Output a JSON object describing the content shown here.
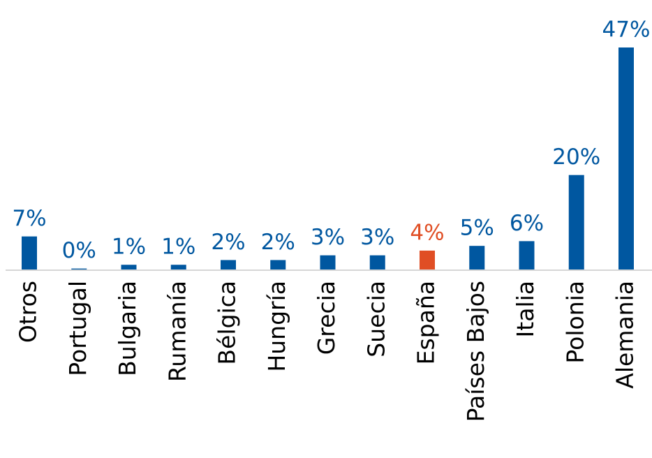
{
  "chart_data": {
    "type": "bar",
    "categories": [
      "Otros",
      "Portugal",
      "Bulgaria",
      "Rumanía",
      "Bélgica",
      "Hungría",
      "Grecia",
      "Suecia",
      "España",
      "Países Bajos",
      "Italia",
      "Polonia",
      "Alemania"
    ],
    "values": [
      7,
      0.2,
      1,
      1,
      2,
      2,
      3,
      3,
      4,
      5,
      6,
      20,
      47
    ],
    "value_labels": [
      "7%",
      "0%",
      "1%",
      "1%",
      "2%",
      "2%",
      "3%",
      "3%",
      "4%",
      "5%",
      "6%",
      "20%",
      "47%"
    ],
    "colors": [
      "#0057a0",
      "#0057a0",
      "#0057a0",
      "#0057a0",
      "#0057a0",
      "#0057a0",
      "#0057a0",
      "#0057a0",
      "#e04e24",
      "#0057a0",
      "#0057a0",
      "#0057a0",
      "#0057a0"
    ],
    "ylim": [
      0,
      47
    ]
  }
}
